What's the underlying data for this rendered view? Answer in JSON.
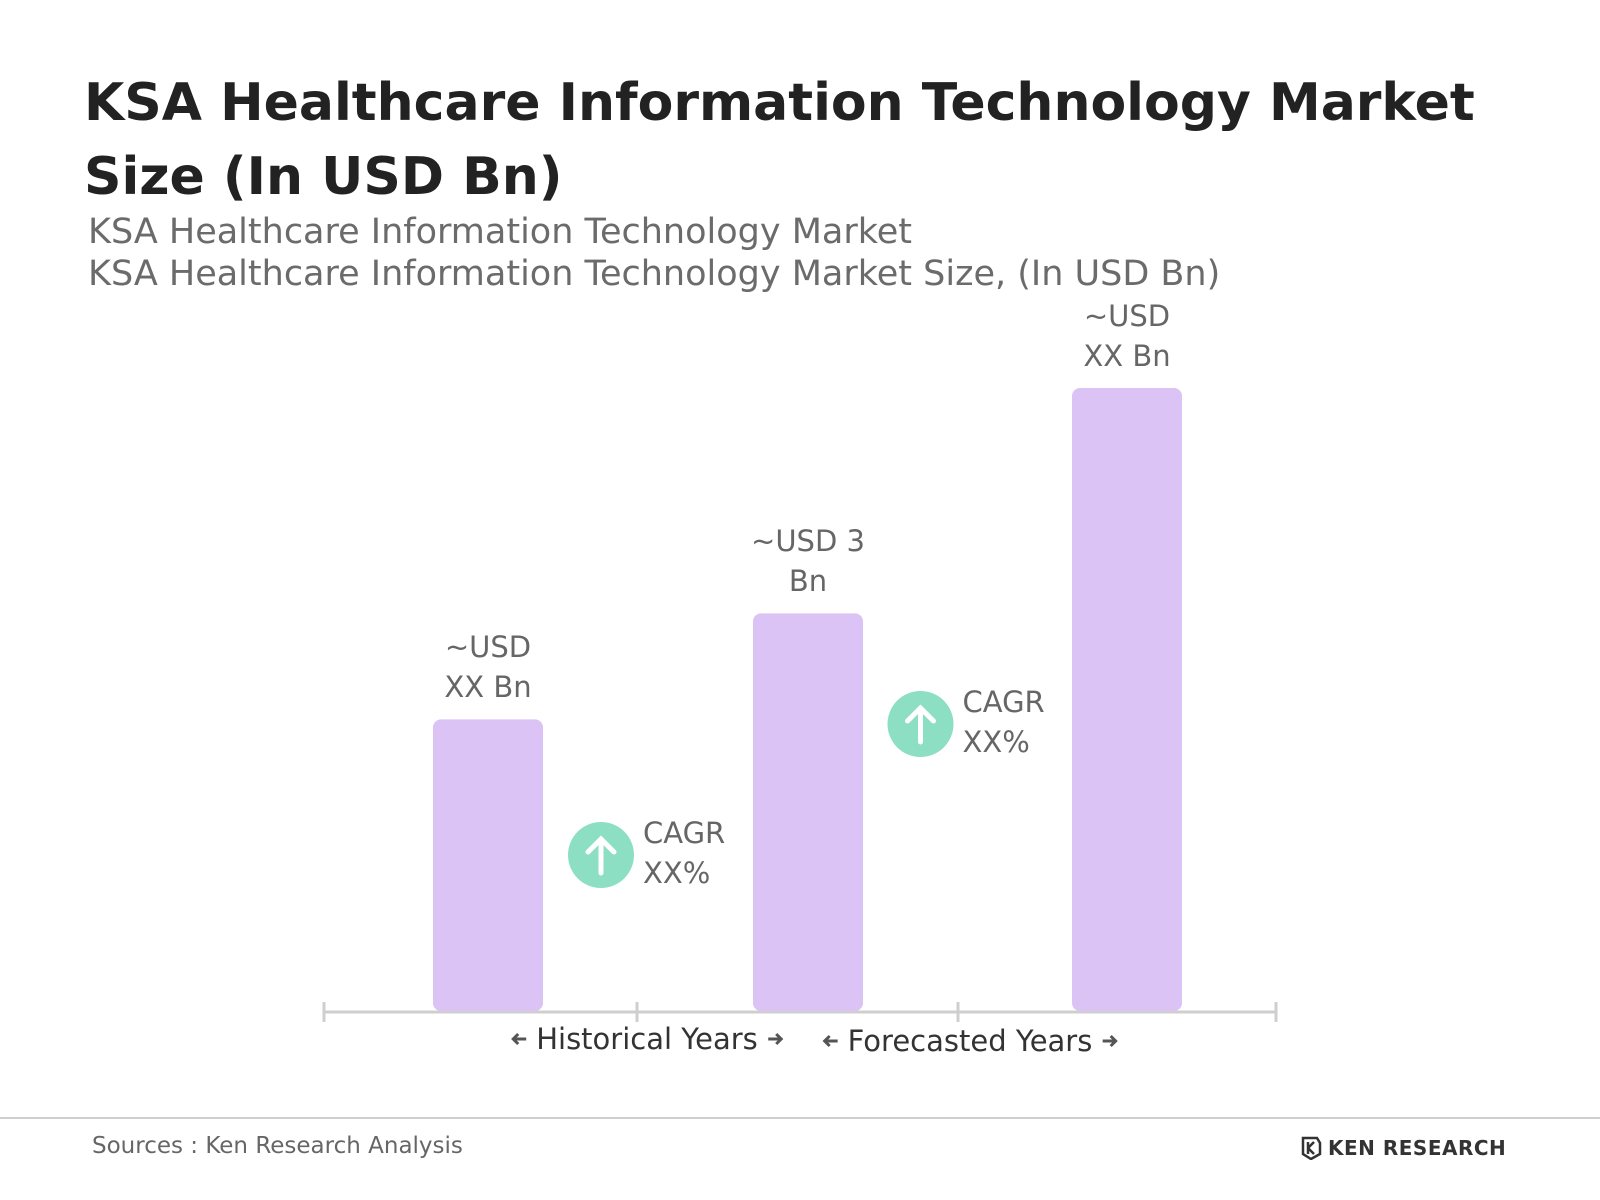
{
  "chart_data": {
    "type": "bar",
    "title": "KSA Healthcare Information Technology Market Size (In USD Bn)",
    "subtitles": [
      "KSA Healthcare Information Technology Market",
      "KSA Healthcare Information Technology Market Size, (In USD Bn)"
    ],
    "categories": [
      null,
      null,
      null
    ],
    "values": [
      2.2,
      3,
      4.7
    ],
    "value_labels": [
      "~USD XX Bn",
      "~USD 3 Bn",
      "~USD XX Bn"
    ],
    "color": "#dcc3f5",
    "annotations": [
      {
        "text": "CAGR XX%"
      },
      {
        "text": "CAGR XX%"
      }
    ],
    "annotation_color": "#8ddfc4",
    "period_labels": [
      "Historical Years",
      "Forecasted Years"
    ]
  },
  "footer": {
    "source": "Sources : Ken Research Analysis",
    "logo": "KEN RESEARCH"
  }
}
